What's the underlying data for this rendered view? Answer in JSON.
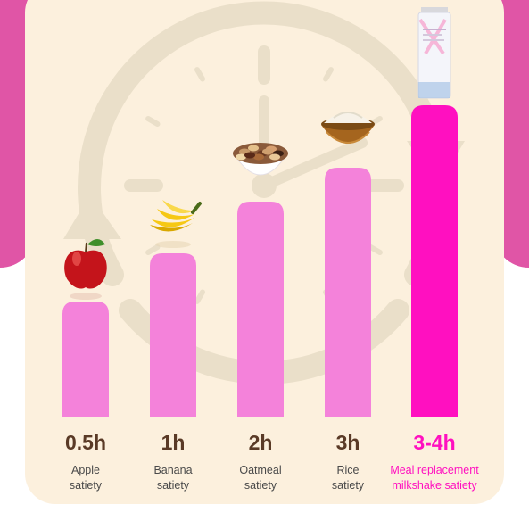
{
  "colors": {
    "page_background": "#ffffff",
    "side_band": "#e055a6",
    "panel_background": "#fcf0dd",
    "watermark": "#eadfc9",
    "bar": "#f482da",
    "bar_highlight": "#ff10c0",
    "value_text": "#5a3a26",
    "value_text_highlight": "#ff10c0",
    "category_text": "#4a4a4a",
    "category_text_highlight": "#ff10c0"
  },
  "chart_data": {
    "type": "bar",
    "title": "",
    "xlabel": "",
    "ylabel": "",
    "categories": [
      "Apple satiety",
      "Banana satiety",
      "Oatmeal satiety",
      "Rice satiety",
      "Meal replacement milkshake satiety"
    ],
    "category_lines": [
      [
        "Apple",
        "satiety"
      ],
      [
        "Banana",
        "satiety"
      ],
      [
        "Oatmeal",
        "satiety"
      ],
      [
        "Rice",
        "satiety"
      ],
      [
        "Meal replacement",
        "milkshake satiety"
      ]
    ],
    "value_labels": [
      "0.5h",
      "1h",
      "2h",
      "3h",
      "3-4h"
    ],
    "values": [
      0.5,
      1,
      2,
      3,
      4
    ],
    "ylim": [
      0,
      4
    ],
    "grid": false,
    "legend": "none",
    "highlight_index": 4,
    "bar_icons": [
      "apple-icon",
      "banana-icon",
      "oatmeal-bowl-icon",
      "rice-bowl-icon",
      "milkshake-bottle-icon"
    ],
    "background_icon": "clock-watermark-icon"
  }
}
